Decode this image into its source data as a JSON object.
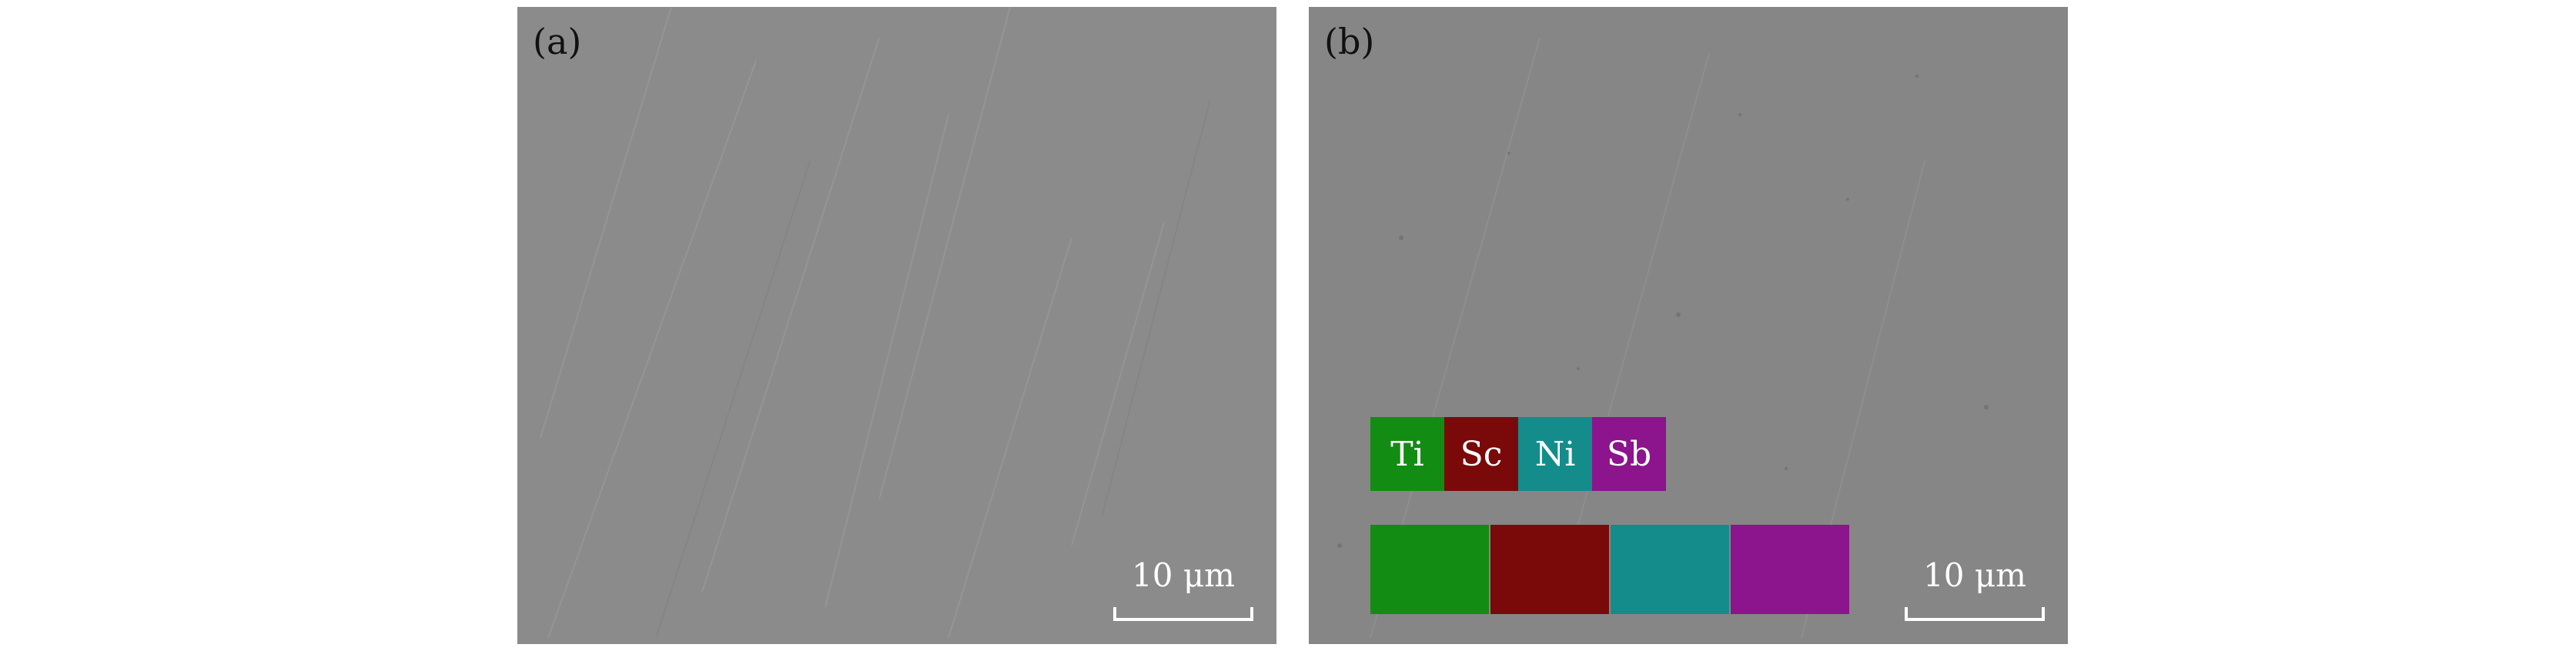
{
  "panels": [
    {
      "label": "(a)",
      "scale_bar": "10 μm"
    },
    {
      "label": "(b)",
      "scale_bar": "10 μm",
      "elements": [
        {
          "symbol": "Ti",
          "color": "#138c13"
        },
        {
          "symbol": "Sc",
          "color": "#7a0a0a"
        },
        {
          "symbol": "Ni",
          "color": "#148c8c"
        },
        {
          "symbol": "Sb",
          "color": "#8c148c"
        }
      ]
    }
  ]
}
